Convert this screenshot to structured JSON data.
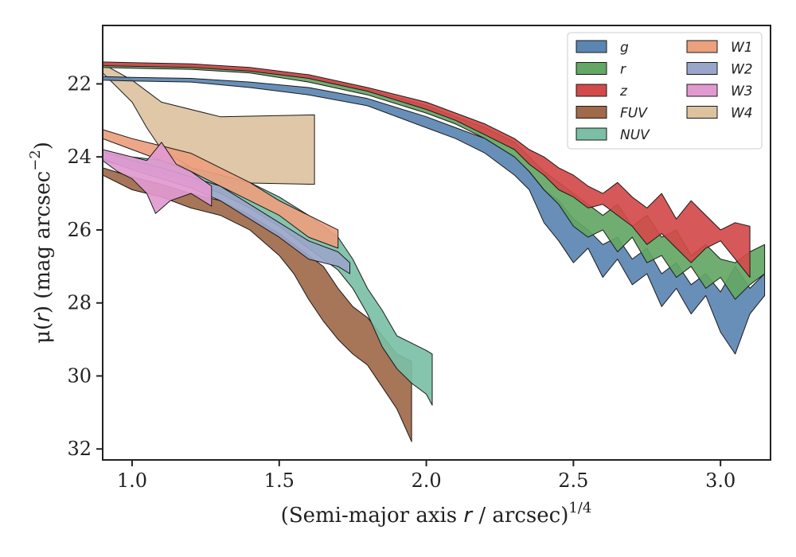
{
  "chart_data": {
    "type": "area",
    "xlabel": {
      "pre": "(Semi-major axis ",
      "var": "r",
      "post": " / arcsec)",
      "sup": "1/4"
    },
    "ylabel": {
      "pre": "μ(",
      "var": "r",
      "post": ") (mag arcsec",
      "sup": "−2",
      "end": ")"
    },
    "xlim": [
      0.9,
      3.17
    ],
    "ylim": [
      32.3,
      20.4
    ],
    "y_inverted": true,
    "xticks": [
      1.0,
      1.5,
      2.0,
      2.5,
      3.0
    ],
    "xtick_labels": [
      "1.0",
      "1.5",
      "2.0",
      "2.5",
      "3.0"
    ],
    "yticks": [
      22,
      24,
      26,
      28,
      30,
      32
    ],
    "ytick_labels": [
      "22",
      "24",
      "26",
      "28",
      "30",
      "32"
    ],
    "grid": false,
    "legend_position": "top-right",
    "legend_columns": 2,
    "series": [
      {
        "name": "W4",
        "color": "#dcc29f",
        "upper": [
          [
            0.9,
            21.45
          ],
          [
            1.0,
            21.9
          ],
          [
            1.1,
            22.5
          ],
          [
            1.3,
            22.9
          ],
          [
            1.62,
            22.85
          ]
        ],
        "lower": [
          [
            0.9,
            21.7
          ],
          [
            1.0,
            22.5
          ],
          [
            1.05,
            23.2
          ],
          [
            1.1,
            23.8
          ],
          [
            1.2,
            24.3
          ],
          [
            1.3,
            24.7
          ],
          [
            1.62,
            24.75
          ]
        ]
      },
      {
        "name": "FUV",
        "color": "#a0694a",
        "upper": [
          [
            0.9,
            24.3
          ],
          [
            1.0,
            24.55
          ],
          [
            1.1,
            24.75
          ],
          [
            1.2,
            25.0
          ],
          [
            1.3,
            25.2
          ],
          [
            1.4,
            25.6
          ],
          [
            1.5,
            26.1
          ],
          [
            1.6,
            26.7
          ],
          [
            1.65,
            27.0
          ],
          [
            1.7,
            27.6
          ],
          [
            1.75,
            28.1
          ],
          [
            1.8,
            28.4
          ],
          [
            1.85,
            28.9
          ],
          [
            1.9,
            29.4
          ],
          [
            1.95,
            29.6
          ]
        ],
        "lower": [
          [
            0.9,
            24.5
          ],
          [
            1.0,
            24.9
          ],
          [
            1.1,
            25.1
          ],
          [
            1.2,
            25.4
          ],
          [
            1.3,
            25.6
          ],
          [
            1.4,
            26.0
          ],
          [
            1.5,
            26.7
          ],
          [
            1.55,
            27.2
          ],
          [
            1.6,
            27.9
          ],
          [
            1.65,
            28.5
          ],
          [
            1.7,
            29.0
          ],
          [
            1.75,
            29.4
          ],
          [
            1.8,
            29.7
          ],
          [
            1.85,
            30.3
          ],
          [
            1.9,
            30.9
          ],
          [
            1.95,
            31.8
          ]
        ]
      },
      {
        "name": "NUV",
        "color": "#7bbfa6",
        "upper": [
          [
            0.9,
            23.9
          ],
          [
            1.0,
            24.0
          ],
          [
            1.1,
            24.1
          ],
          [
            1.2,
            24.3
          ],
          [
            1.3,
            24.5
          ],
          [
            1.4,
            24.7
          ],
          [
            1.5,
            25.1
          ],
          [
            1.6,
            25.6
          ],
          [
            1.7,
            26.2
          ],
          [
            1.75,
            26.8
          ],
          [
            1.8,
            27.6
          ],
          [
            1.85,
            28.2
          ],
          [
            1.9,
            28.9
          ],
          [
            1.95,
            29.1
          ],
          [
            2.0,
            29.3
          ],
          [
            2.02,
            29.4
          ]
        ],
        "lower": [
          [
            0.9,
            24.1
          ],
          [
            1.0,
            24.3
          ],
          [
            1.1,
            24.45
          ],
          [
            1.2,
            24.65
          ],
          [
            1.3,
            25.0
          ],
          [
            1.4,
            25.4
          ],
          [
            1.5,
            25.9
          ],
          [
            1.6,
            26.5
          ],
          [
            1.7,
            27.1
          ],
          [
            1.75,
            27.6
          ],
          [
            1.8,
            28.3
          ],
          [
            1.85,
            29.2
          ],
          [
            1.9,
            29.8
          ],
          [
            1.95,
            30.2
          ],
          [
            2.0,
            30.5
          ],
          [
            2.02,
            30.8
          ]
        ]
      },
      {
        "name": "W1",
        "color": "#eba07e",
        "upper": [
          [
            0.9,
            23.25
          ],
          [
            1.0,
            23.5
          ],
          [
            1.1,
            23.7
          ],
          [
            1.2,
            23.9
          ],
          [
            1.3,
            24.3
          ],
          [
            1.4,
            24.7
          ],
          [
            1.5,
            25.2
          ],
          [
            1.6,
            25.6
          ],
          [
            1.7,
            26.0
          ]
        ],
        "lower": [
          [
            0.9,
            23.5
          ],
          [
            1.0,
            23.8
          ],
          [
            1.1,
            24.1
          ],
          [
            1.2,
            24.4
          ],
          [
            1.3,
            24.8
          ],
          [
            1.4,
            25.2
          ],
          [
            1.5,
            25.6
          ],
          [
            1.6,
            26.2
          ],
          [
            1.7,
            26.5
          ]
        ]
      },
      {
        "name": "W2",
        "color": "#9aa6c9",
        "upper": [
          [
            0.9,
            23.85
          ],
          [
            1.0,
            24.1
          ],
          [
            1.1,
            24.3
          ],
          [
            1.2,
            24.55
          ],
          [
            1.3,
            24.8
          ],
          [
            1.4,
            25.3
          ],
          [
            1.5,
            25.8
          ],
          [
            1.6,
            26.3
          ],
          [
            1.7,
            26.6
          ],
          [
            1.74,
            26.9
          ]
        ],
        "lower": [
          [
            0.9,
            24.05
          ],
          [
            1.0,
            24.35
          ],
          [
            1.1,
            24.6
          ],
          [
            1.2,
            24.85
          ],
          [
            1.3,
            25.2
          ],
          [
            1.4,
            25.7
          ],
          [
            1.5,
            26.2
          ],
          [
            1.6,
            26.8
          ],
          [
            1.7,
            27.0
          ],
          [
            1.74,
            27.2
          ]
        ]
      },
      {
        "name": "W3",
        "color": "#e19ad0",
        "upper": [
          [
            0.9,
            23.8
          ],
          [
            0.95,
            23.9
          ],
          [
            1.0,
            24.0
          ],
          [
            1.05,
            24.1
          ],
          [
            1.1,
            23.6
          ],
          [
            1.15,
            24.2
          ],
          [
            1.2,
            24.4
          ],
          [
            1.27,
            24.8
          ]
        ],
        "lower": [
          [
            0.9,
            24.1
          ],
          [
            0.95,
            24.4
          ],
          [
            1.0,
            24.6
          ],
          [
            1.05,
            25.0
          ],
          [
            1.08,
            25.55
          ],
          [
            1.13,
            25.2
          ],
          [
            1.2,
            25.0
          ],
          [
            1.27,
            25.35
          ]
        ]
      },
      {
        "name": "g",
        "color": "#5b86b2",
        "upper": [
          [
            0.9,
            21.8
          ],
          [
            1.0,
            21.82
          ],
          [
            1.2,
            21.85
          ],
          [
            1.4,
            21.95
          ],
          [
            1.6,
            22.1
          ],
          [
            1.8,
            22.4
          ],
          [
            2.0,
            22.9
          ],
          [
            2.1,
            23.2
          ],
          [
            2.2,
            23.5
          ],
          [
            2.3,
            24.0
          ],
          [
            2.35,
            24.4
          ],
          [
            2.4,
            24.9
          ],
          [
            2.45,
            25.2
          ],
          [
            2.5,
            25.7
          ],
          [
            2.55,
            26.0
          ],
          [
            2.6,
            26.4
          ],
          [
            2.65,
            26.2
          ],
          [
            2.7,
            26.8
          ],
          [
            2.75,
            26.5
          ],
          [
            2.8,
            27.2
          ],
          [
            2.85,
            26.9
          ],
          [
            2.9,
            27.5
          ],
          [
            2.95,
            27.2
          ],
          [
            3.0,
            27.7
          ],
          [
            3.05,
            27.0
          ],
          [
            3.1,
            27.6
          ],
          [
            3.15,
            27.2
          ]
        ],
        "lower": [
          [
            0.9,
            21.9
          ],
          [
            1.0,
            21.92
          ],
          [
            1.2,
            21.95
          ],
          [
            1.4,
            22.1
          ],
          [
            1.6,
            22.3
          ],
          [
            1.8,
            22.6
          ],
          [
            2.0,
            23.2
          ],
          [
            2.1,
            23.5
          ],
          [
            2.2,
            23.9
          ],
          [
            2.3,
            24.5
          ],
          [
            2.35,
            24.9
          ],
          [
            2.4,
            25.8
          ],
          [
            2.45,
            26.3
          ],
          [
            2.5,
            26.9
          ],
          [
            2.55,
            26.5
          ],
          [
            2.6,
            27.3
          ],
          [
            2.65,
            26.8
          ],
          [
            2.7,
            27.5
          ],
          [
            2.75,
            27.2
          ],
          [
            2.8,
            28.1
          ],
          [
            2.85,
            27.6
          ],
          [
            2.9,
            28.3
          ],
          [
            2.95,
            27.8
          ],
          [
            3.0,
            28.8
          ],
          [
            3.05,
            29.4
          ],
          [
            3.1,
            28.3
          ],
          [
            3.15,
            27.8
          ]
        ]
      },
      {
        "name": "r",
        "color": "#63a764",
        "upper": [
          [
            0.9,
            21.45
          ],
          [
            1.0,
            21.47
          ],
          [
            1.2,
            21.5
          ],
          [
            1.4,
            21.6
          ],
          [
            1.6,
            21.8
          ],
          [
            1.8,
            22.15
          ],
          [
            2.0,
            22.6
          ],
          [
            2.1,
            22.9
          ],
          [
            2.2,
            23.2
          ],
          [
            2.3,
            23.6
          ],
          [
            2.35,
            24.0
          ],
          [
            2.4,
            24.4
          ],
          [
            2.45,
            24.7
          ],
          [
            2.5,
            25.0
          ],
          [
            2.55,
            25.3
          ],
          [
            2.6,
            25.6
          ],
          [
            2.65,
            25.3
          ],
          [
            2.7,
            25.9
          ],
          [
            2.75,
            25.6
          ],
          [
            2.8,
            26.2
          ],
          [
            2.85,
            26.0
          ],
          [
            2.9,
            26.7
          ],
          [
            2.95,
            26.4
          ],
          [
            3.0,
            26.8
          ],
          [
            3.05,
            26.9
          ],
          [
            3.1,
            26.6
          ],
          [
            3.15,
            26.4
          ]
        ],
        "lower": [
          [
            0.9,
            21.55
          ],
          [
            1.0,
            21.57
          ],
          [
            1.2,
            21.6
          ],
          [
            1.4,
            21.7
          ],
          [
            1.6,
            21.95
          ],
          [
            1.8,
            22.3
          ],
          [
            2.0,
            22.8
          ],
          [
            2.1,
            23.1
          ],
          [
            2.2,
            23.5
          ],
          [
            2.3,
            24.0
          ],
          [
            2.35,
            24.4
          ],
          [
            2.4,
            24.9
          ],
          [
            2.45,
            25.3
          ],
          [
            2.5,
            25.9
          ],
          [
            2.55,
            26.2
          ],
          [
            2.6,
            26.0
          ],
          [
            2.65,
            26.6
          ],
          [
            2.7,
            26.2
          ],
          [
            2.75,
            26.9
          ],
          [
            2.8,
            26.7
          ],
          [
            2.85,
            27.3
          ],
          [
            2.9,
            27.0
          ],
          [
            2.95,
            27.6
          ],
          [
            3.0,
            27.3
          ],
          [
            3.05,
            27.9
          ],
          [
            3.1,
            27.5
          ],
          [
            3.15,
            27.2
          ]
        ]
      },
      {
        "name": "z",
        "color": "#d24a4a",
        "upper": [
          [
            0.9,
            21.4
          ],
          [
            1.0,
            21.42
          ],
          [
            1.2,
            21.45
          ],
          [
            1.4,
            21.55
          ],
          [
            1.6,
            21.75
          ],
          [
            1.8,
            22.1
          ],
          [
            2.0,
            22.5
          ],
          [
            2.1,
            22.8
          ],
          [
            2.2,
            23.1
          ],
          [
            2.3,
            23.5
          ],
          [
            2.35,
            23.8
          ],
          [
            2.4,
            24.0
          ],
          [
            2.45,
            24.3
          ],
          [
            2.5,
            24.5
          ],
          [
            2.55,
            24.8
          ],
          [
            2.6,
            25.0
          ],
          [
            2.65,
            24.7
          ],
          [
            2.7,
            25.1
          ],
          [
            2.75,
            25.4
          ],
          [
            2.8,
            25.0
          ],
          [
            2.85,
            25.7
          ],
          [
            2.9,
            25.2
          ],
          [
            2.95,
            25.6
          ],
          [
            3.0,
            26.0
          ],
          [
            3.05,
            25.8
          ],
          [
            3.1,
            25.9
          ]
        ],
        "lower": [
          [
            0.9,
            21.5
          ],
          [
            1.0,
            21.52
          ],
          [
            1.2,
            21.55
          ],
          [
            1.4,
            21.65
          ],
          [
            1.6,
            21.85
          ],
          [
            1.8,
            22.2
          ],
          [
            2.0,
            22.7
          ],
          [
            2.1,
            23.0
          ],
          [
            2.2,
            23.4
          ],
          [
            2.3,
            23.8
          ],
          [
            2.35,
            24.2
          ],
          [
            2.4,
            24.5
          ],
          [
            2.45,
            24.9
          ],
          [
            2.5,
            25.1
          ],
          [
            2.55,
            25.4
          ],
          [
            2.6,
            25.3
          ],
          [
            2.65,
            25.6
          ],
          [
            2.7,
            25.9
          ],
          [
            2.75,
            26.4
          ],
          [
            2.8,
            26.1
          ],
          [
            2.85,
            26.5
          ],
          [
            2.9,
            26.9
          ],
          [
            2.95,
            26.5
          ],
          [
            3.0,
            26.3
          ],
          [
            3.05,
            26.8
          ],
          [
            3.1,
            27.3
          ]
        ]
      }
    ],
    "legend_entries": [
      {
        "name": "g",
        "color": "#5b86b2"
      },
      {
        "name": "r",
        "color": "#63a764"
      },
      {
        "name": "z",
        "color": "#d24a4a"
      },
      {
        "name": "FUV",
        "color": "#a0694a"
      },
      {
        "name": "NUV",
        "color": "#7bbfa6"
      },
      {
        "name": "W1",
        "color": "#eba07e"
      },
      {
        "name": "W2",
        "color": "#9aa6c9"
      },
      {
        "name": "W3",
        "color": "#e19ad0"
      },
      {
        "name": "W4",
        "color": "#dcc29f"
      }
    ]
  }
}
